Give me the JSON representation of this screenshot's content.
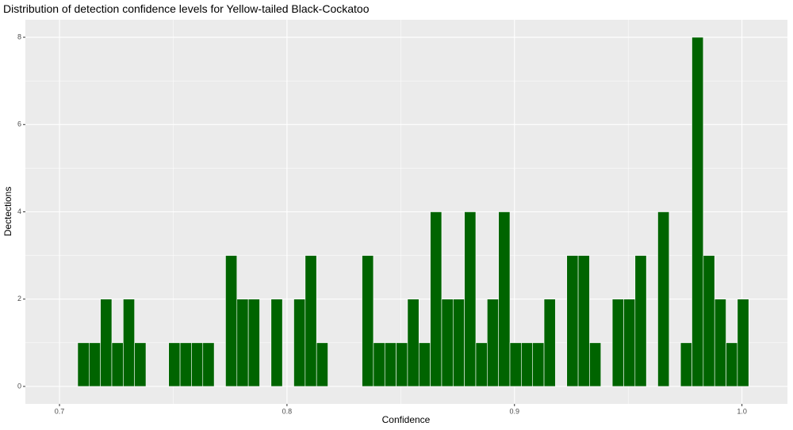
{
  "chart_data": {
    "type": "histogram",
    "title": "Distribution of detection confidence levels for Yellow-tailed Black-Cockatoo",
    "x_label": "Confidence",
    "y_label": "Dectections",
    "bins": [
      0.708,
      0.713,
      0.718,
      0.723,
      0.728,
      0.733,
      0.738,
      0.743,
      0.748,
      0.753,
      0.758,
      0.763,
      0.768,
      0.773,
      0.778,
      0.783,
      0.788,
      0.793,
      0.798,
      0.803,
      0.808,
      0.813,
      0.818,
      0.823,
      0.828,
      0.833,
      0.838,
      0.843,
      0.848,
      0.853,
      0.858,
      0.863,
      0.868,
      0.873,
      0.878,
      0.883,
      0.888,
      0.893,
      0.898,
      0.903,
      0.908,
      0.913,
      0.918,
      0.923,
      0.928,
      0.933,
      0.938,
      0.943,
      0.948,
      0.953,
      0.958,
      0.963,
      0.968,
      0.973,
      0.978,
      0.983,
      0.988,
      0.993,
      0.998,
      1.003
    ],
    "values": [
      1,
      1,
      2,
      1,
      2,
      1,
      0,
      0,
      1,
      1,
      1,
      1,
      0,
      3,
      2,
      2,
      0,
      2,
      0,
      2,
      3,
      1,
      0,
      0,
      0,
      3,
      1,
      1,
      1,
      2,
      1,
      4,
      2,
      2,
      4,
      1,
      2,
      4,
      1,
      1,
      1,
      2,
      0,
      3,
      3,
      1,
      0,
      2,
      2,
      3,
      0,
      4,
      0,
      1,
      8,
      3,
      2,
      1,
      2
    ],
    "color": "#006400",
    "xlim": [
      0.685,
      1.02
    ],
    "ylim": [
      -0.4,
      8.4
    ],
    "xticks": [
      0.7,
      0.8,
      0.9,
      {
        "value": 1.0,
        "label": "1.0"
      }
    ],
    "yticks": [
      0,
      2,
      4,
      6,
      8
    ],
    "grid": true
  }
}
